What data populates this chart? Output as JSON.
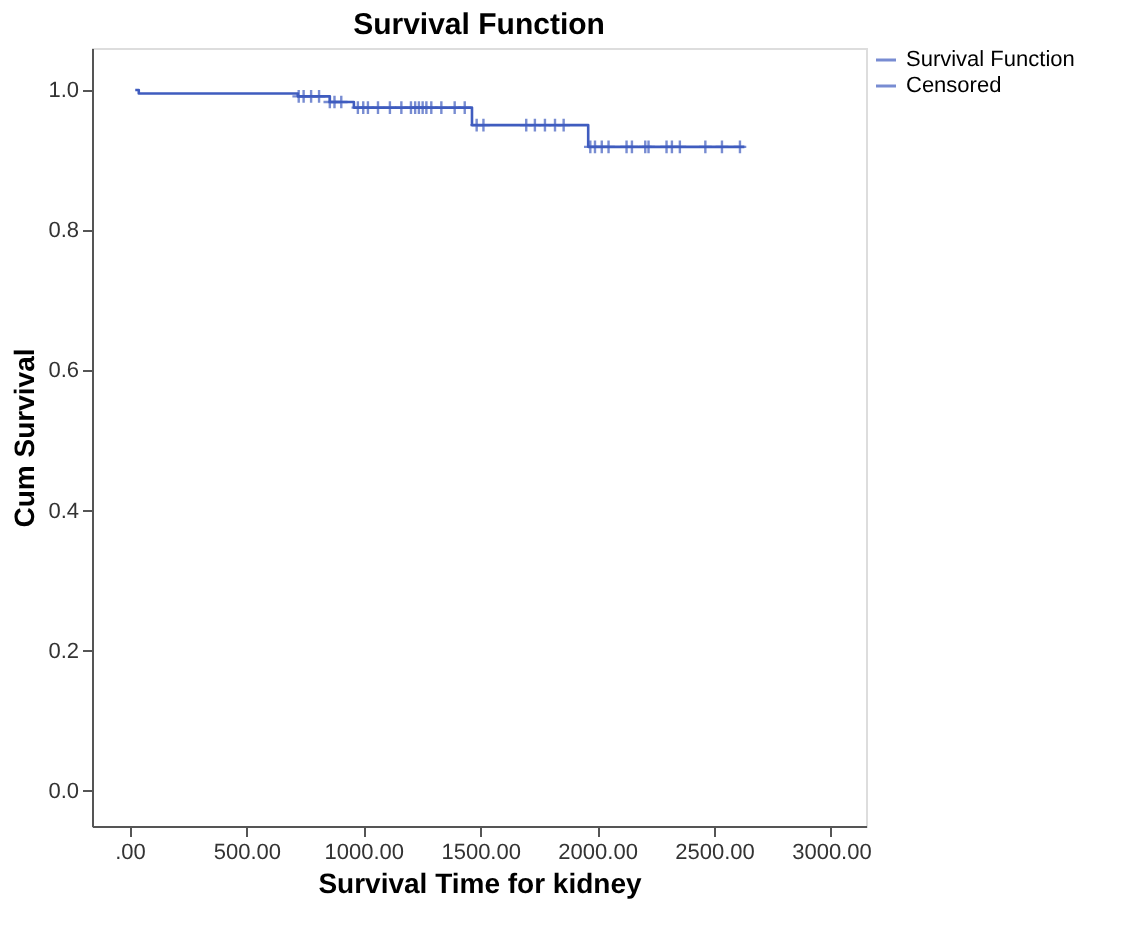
{
  "chart_data": {
    "type": "step",
    "title": "Survival Function",
    "xlabel": "Survival Time for kidney",
    "ylabel": "Cum Survival",
    "xlim": [
      -160,
      3150
    ],
    "ylim": [
      -0.05,
      1.06
    ],
    "xticks": [
      {
        "value": 0,
        "label": ".00"
      },
      {
        "value": 500,
        "label": "500.00"
      },
      {
        "value": 1000,
        "label": "1000.00"
      },
      {
        "value": 1500,
        "label": "1500.00"
      },
      {
        "value": 2000,
        "label": "2000.00"
      },
      {
        "value": 2500,
        "label": "2500.00"
      },
      {
        "value": 3000,
        "label": "3000.00"
      }
    ],
    "yticks": [
      {
        "value": 0,
        "label": "0.0"
      },
      {
        "value": 0.2,
        "label": "0.2"
      },
      {
        "value": 0.4,
        "label": "0.4"
      },
      {
        "value": 0.6,
        "label": "0.6"
      },
      {
        "value": 0.8,
        "label": "0.8"
      },
      {
        "value": 1,
        "label": "1.0"
      }
    ],
    "grid": false,
    "legend": "top right",
    "series": [
      {
        "name": "Survival Function",
        "color": "#3f5cbf",
        "x": [
          25,
          40,
          720,
          857,
          960,
          1465,
          1962,
          2630
        ],
        "values": [
          1.0,
          0.995,
          0.991,
          0.983,
          0.975,
          0.95,
          0.919,
          0.919
        ]
      },
      {
        "name": "Censored",
        "type": "scatter",
        "marker": "cross",
        "color": "#3f5cbf",
        "x": [
          724,
          745,
          777,
          811,
          857,
          877,
          906,
          977,
          1000,
          1020,
          1063,
          1114,
          1163,
          1204,
          1222,
          1238,
          1254,
          1270,
          1291,
          1334,
          1391,
          1434,
          1485,
          1514,
          1697,
          1734,
          1777,
          1820,
          1857,
          1971,
          1991,
          2020,
          2049,
          2126,
          2149,
          2206,
          2220,
          2297,
          2320,
          2354,
          2463,
          2534,
          2611
        ],
        "values": [
          0.991,
          0.991,
          0.991,
          0.991,
          0.983,
          0.983,
          0.983,
          0.975,
          0.975,
          0.975,
          0.975,
          0.975,
          0.975,
          0.975,
          0.975,
          0.975,
          0.975,
          0.975,
          0.975,
          0.975,
          0.975,
          0.975,
          0.95,
          0.95,
          0.95,
          0.95,
          0.95,
          0.95,
          0.95,
          0.919,
          0.919,
          0.919,
          0.919,
          0.919,
          0.919,
          0.919,
          0.919,
          0.919,
          0.919,
          0.919,
          0.919,
          0.919,
          0.919
        ]
      }
    ]
  }
}
